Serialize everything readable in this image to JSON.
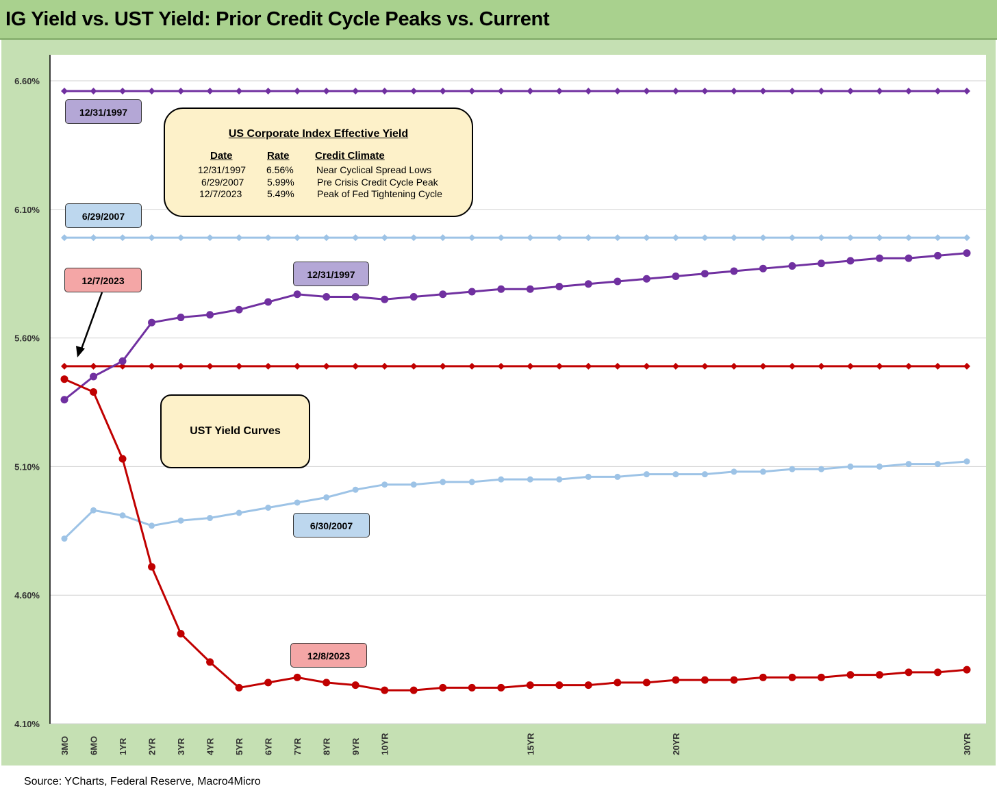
{
  "title": "IG Yield vs. UST Yield: Prior Credit Cycle Peaks vs. Current",
  "footer": "Source: YCharts, Federal Reserve, Macro4Micro",
  "info_box": {
    "heading": "US Corporate Index Effective Yield",
    "columns": [
      "Date",
      "Rate",
      "Credit Climate"
    ],
    "rows": [
      [
        "12/31/1997",
        "6.56%",
        "Near Cyclical Spread Lows"
      ],
      [
        "6/29/2007",
        "5.99%",
        "Pre Crisis Credit Cycle Peak"
      ],
      [
        "12/7/2023",
        "5.49%",
        "Peak of Fed Tightening Cycle"
      ]
    ]
  },
  "ust_box": "UST Yield Curves",
  "labels": {
    "ig_1997": "12/31/1997",
    "ig_2007": "6/29/2007",
    "ig_2023": "12/7/2023",
    "ust_1997": "12/31/1997",
    "ust_2007": "6/30/2007",
    "ust_2023": "12/8/2023"
  },
  "chart_data": {
    "type": "line",
    "title": "IG Yield vs. UST Yield: Prior Credit Cycle Peaks vs. Current",
    "ylim": [
      4.1,
      6.6
    ],
    "yticks": [
      "4.10%",
      "4.60%",
      "5.10%",
      "5.60%",
      "6.10%",
      "6.60%"
    ],
    "yticks_values": [
      4.1,
      4.6,
      5.1,
      5.6,
      6.1,
      6.6
    ],
    "grid": true,
    "categories": [
      "3MO",
      "6MO",
      "1YR",
      "2YR",
      "3YR",
      "4YR",
      "5YR",
      "6YR",
      "7YR",
      "8YR",
      "9YR",
      "10YR",
      "",
      "",
      "",
      "",
      "15YR",
      "",
      "",
      "",
      "",
      "20YR",
      "",
      "",
      "",
      "",
      "",
      "",
      "",
      "",
      "",
      "30YR"
    ],
    "series": [
      {
        "name": "12/31/1997",
        "kind": "IG",
        "color": "#7030a0",
        "marker": "diamond",
        "values": [
          6.56,
          6.56,
          6.56,
          6.56,
          6.56,
          6.56,
          6.56,
          6.56,
          6.56,
          6.56,
          6.56,
          6.56,
          6.56,
          6.56,
          6.56,
          6.56,
          6.56,
          6.56,
          6.56,
          6.56,
          6.56,
          6.56,
          6.56,
          6.56,
          6.56,
          6.56,
          6.56,
          6.56,
          6.56,
          6.56,
          6.56,
          6.56
        ]
      },
      {
        "name": "6/29/2007",
        "kind": "IG",
        "color": "#9dc3e6",
        "marker": "diamond",
        "values": [
          5.99,
          5.99,
          5.99,
          5.99,
          5.99,
          5.99,
          5.99,
          5.99,
          5.99,
          5.99,
          5.99,
          5.99,
          5.99,
          5.99,
          5.99,
          5.99,
          5.99,
          5.99,
          5.99,
          5.99,
          5.99,
          5.99,
          5.99,
          5.99,
          5.99,
          5.99,
          5.99,
          5.99,
          5.99,
          5.99,
          5.99,
          5.99
        ]
      },
      {
        "name": "12/7/2023",
        "kind": "IG",
        "color": "#c00000",
        "marker": "diamond",
        "values": [
          5.49,
          5.49,
          5.49,
          5.49,
          5.49,
          5.49,
          5.49,
          5.49,
          5.49,
          5.49,
          5.49,
          5.49,
          5.49,
          5.49,
          5.49,
          5.49,
          5.49,
          5.49,
          5.49,
          5.49,
          5.49,
          5.49,
          5.49,
          5.49,
          5.49,
          5.49,
          5.49,
          5.49,
          5.49,
          5.49,
          5.49,
          5.49
        ]
      },
      {
        "name": "12/31/1997",
        "kind": "UST",
        "color": "#7030a0",
        "marker": "circle",
        "values": [
          5.36,
          5.45,
          5.51,
          5.66,
          5.68,
          5.69,
          5.71,
          5.74,
          5.77,
          5.76,
          5.76,
          5.75,
          5.76,
          5.77,
          5.78,
          5.79,
          5.79,
          5.8,
          5.81,
          5.82,
          5.83,
          5.84,
          5.85,
          5.86,
          5.87,
          5.88,
          5.89,
          5.9,
          5.91,
          5.91,
          5.92,
          5.93
        ]
      },
      {
        "name": "6/30/2007",
        "kind": "UST",
        "color": "#9dc3e6",
        "marker": "circle",
        "values": [
          4.82,
          4.93,
          4.91,
          4.87,
          4.89,
          4.9,
          4.92,
          4.94,
          4.96,
          4.98,
          5.01,
          5.03,
          5.03,
          5.04,
          5.04,
          5.05,
          5.05,
          5.05,
          5.06,
          5.06,
          5.07,
          5.07,
          5.07,
          5.08,
          5.08,
          5.09,
          5.09,
          5.1,
          5.1,
          5.11,
          5.11,
          5.12
        ]
      },
      {
        "name": "12/8/2023",
        "kind": "UST",
        "color": "#c00000",
        "marker": "circle",
        "values": [
          5.44,
          5.39,
          5.13,
          4.71,
          4.45,
          4.34,
          4.24,
          4.26,
          4.28,
          4.26,
          4.25,
          4.23,
          4.23,
          4.24,
          4.24,
          4.24,
          4.25,
          4.25,
          4.25,
          4.26,
          4.26,
          4.27,
          4.27,
          4.27,
          4.28,
          4.28,
          4.28,
          4.29,
          4.29,
          4.3,
          4.3,
          4.31
        ]
      }
    ]
  }
}
